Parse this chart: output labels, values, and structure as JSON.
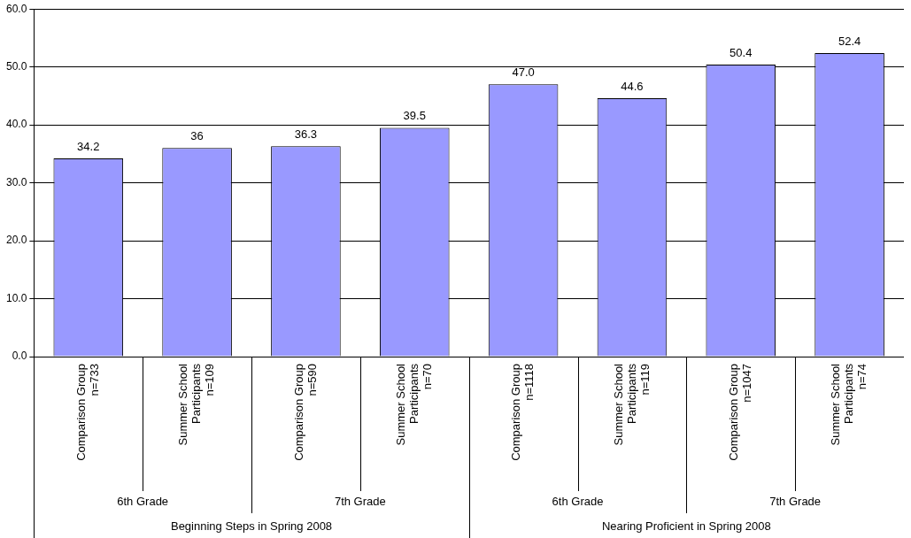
{
  "chart_data": {
    "type": "bar",
    "categories": [
      "Comparison Group\nn=733",
      "Summer School\nParticipants\nn=109",
      "Comparison Group\nn=590",
      "Summer School\nParticipants\nn=70",
      "Comparison Group\nn=1118",
      "Summer School\nParticipants\nn=119",
      "Comparison Group\nn=1047",
      "Summer School\nParticipants\nn=74"
    ],
    "values": [
      34.2,
      36,
      36.3,
      39.5,
      47.0,
      44.6,
      50.4,
      52.4
    ],
    "value_labels": [
      "34.2",
      "36",
      "36.3",
      "39.5",
      "47.0",
      "44.6",
      "50.4",
      "52.4"
    ],
    "color": "#9999ff",
    "ylim": [
      0,
      60
    ],
    "yticks": [
      {
        "value": 0,
        "label": "0.0"
      },
      {
        "value": 10,
        "label": "10.0"
      },
      {
        "value": 20,
        "label": "20.0"
      },
      {
        "value": 30,
        "label": "30.0"
      },
      {
        "value": 40,
        "label": "40.0"
      },
      {
        "value": 50,
        "label": "50.0"
      },
      {
        "value": 60,
        "label": "60.0"
      }
    ],
    "grid": "y",
    "annotations": [
      "6th Grade",
      "7th Grade",
      "6th Grade",
      "7th Grade",
      "Beginning Steps in Spring 2008",
      "Nearing Proficient in Spring 2008"
    ]
  }
}
